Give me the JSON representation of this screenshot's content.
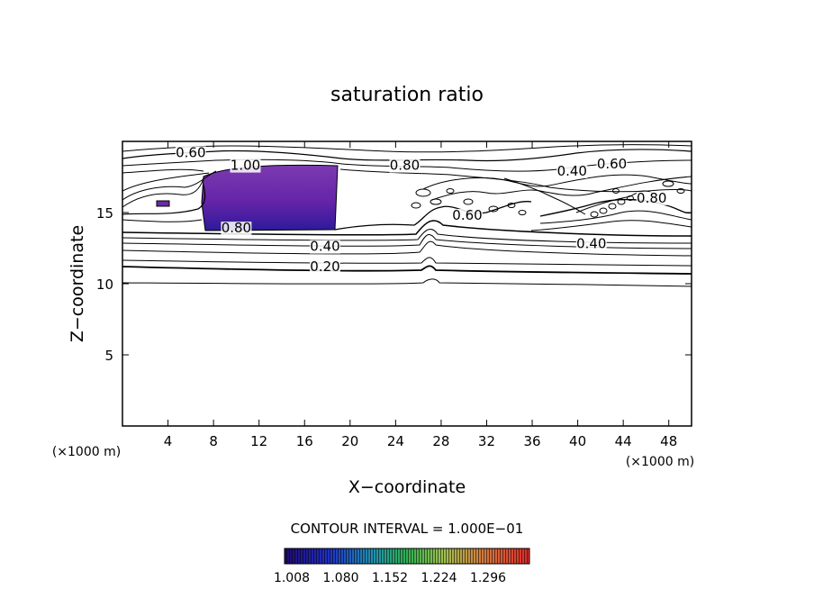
{
  "chart_data": {
    "type": "contour",
    "title": "saturation ratio",
    "xlabel": "X−coordinate",
    "ylabel": "Z−coordinate",
    "x_unit_left": "(×1000 m)",
    "x_unit_right": "(×1000 m)",
    "xlim": [
      0,
      50
    ],
    "ylim": [
      0,
      20
    ],
    "x_ticks": [
      4,
      8,
      12,
      16,
      20,
      24,
      28,
      32,
      36,
      40,
      44,
      48
    ],
    "y_ticks": [
      5,
      10,
      15
    ],
    "grid": false,
    "contour_interval_text": "CONTOUR INTERVAL = 1.000E−01",
    "colorbar_labels": [
      "1.008",
      "1.080",
      "1.152",
      "1.224",
      "1.296"
    ],
    "contour_labels": [
      {
        "text": "0.60",
        "x": 6.0,
        "z": 18.9
      },
      {
        "text": "1.00",
        "x": 10.8,
        "z": 18.0
      },
      {
        "text": "0.80",
        "x": 24.8,
        "z": 18.0
      },
      {
        "text": "0.40",
        "x": 39.5,
        "z": 17.6
      },
      {
        "text": "0.60",
        "x": 43.0,
        "z": 18.1
      },
      {
        "text": "0.60",
        "x": 30.3,
        "z": 14.5
      },
      {
        "text": "0.80",
        "x": 46.5,
        "z": 15.7
      },
      {
        "text": "0.80",
        "x": 10.0,
        "z": 13.6
      },
      {
        "text": "0.40",
        "x": 17.8,
        "z": 12.3
      },
      {
        "text": "0.40",
        "x": 41.2,
        "z": 12.5
      },
      {
        "text": "0.20",
        "x": 17.8,
        "z": 10.9
      }
    ],
    "colors": {
      "supersat_dark": "#2a1aa0",
      "supersat_light": "#7a2aa8",
      "colorbar_low": "#1a0a80",
      "colorbar_mid": "#20a050",
      "colorbar_high": "#e02020"
    }
  }
}
